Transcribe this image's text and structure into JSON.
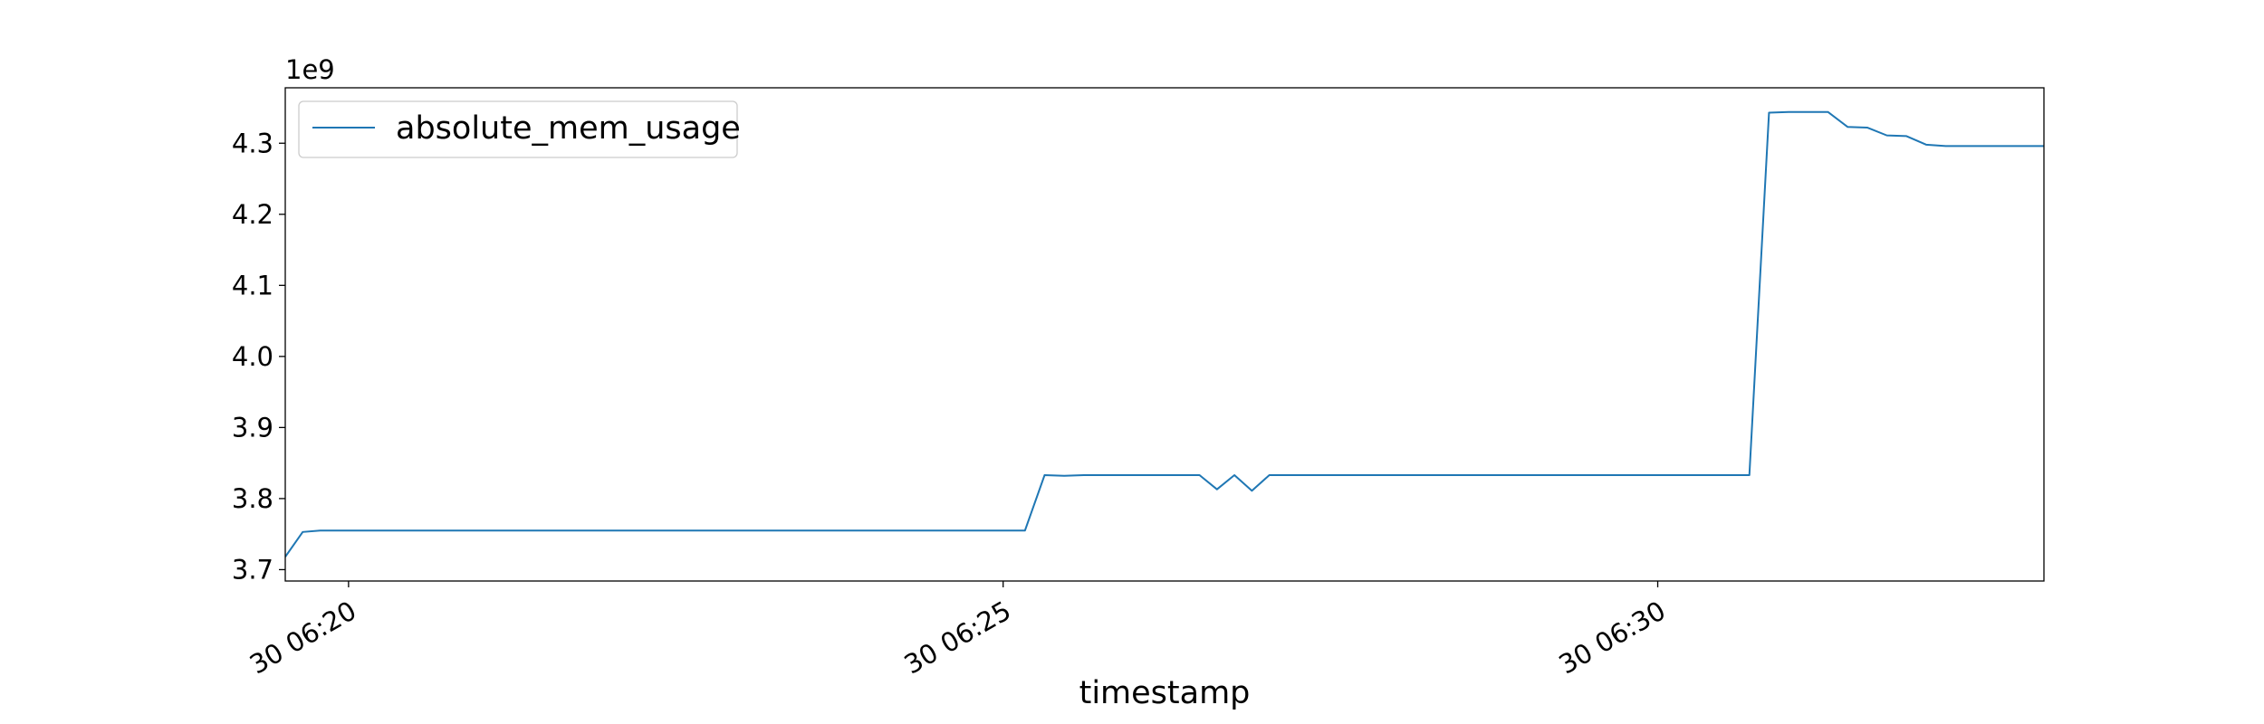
{
  "chart_data": {
    "type": "line",
    "title": "",
    "xlabel": "timestamp",
    "ylabel": "",
    "y_offset_label": "1e9",
    "y_scale_factor": 1000000000,
    "xlim": [
      "06:19:31",
      "06:32:57"
    ],
    "ylim": [
      3.684,
      4.378
    ],
    "x_ticks": [
      {
        "value": "06:20:00",
        "label": "30 06:20"
      },
      {
        "value": "06:25:00",
        "label": "30 06:25"
      },
      {
        "value": "06:30:00",
        "label": "30 06:30"
      }
    ],
    "y_ticks": [
      3.7,
      3.8,
      3.9,
      4.0,
      4.1,
      4.2,
      4.3
    ],
    "y_tick_labels": [
      "3.7",
      "3.8",
      "3.9",
      "4.0",
      "4.1",
      "4.2",
      "4.3"
    ],
    "grid": false,
    "legend_position": "top-left",
    "series": [
      {
        "name": "absolute_mem_usage",
        "color": "#1f77b4",
        "x": [
          "06:19:31",
          "06:19:39",
          "06:19:47",
          "06:20:00",
          "06:22:00",
          "06:24:00",
          "06:25:10",
          "06:25:19",
          "06:25:28",
          "06:25:37",
          "06:26:00",
          "06:26:30",
          "06:26:38",
          "06:26:46",
          "06:26:54",
          "06:27:02",
          "06:27:10",
          "06:28:30",
          "06:29:45",
          "06:30:30",
          "06:30:42",
          "06:30:51",
          "06:31:00",
          "06:31:09",
          "06:31:18",
          "06:31:27",
          "06:31:36",
          "06:31:45",
          "06:31:54",
          "06:32:03",
          "06:32:12",
          "06:32:21",
          "06:32:30",
          "06:32:39",
          "06:32:48",
          "06:32:57"
        ],
        "values": [
          3.718,
          3.753,
          3.755,
          3.755,
          3.755,
          3.755,
          3.755,
          3.833,
          3.832,
          3.833,
          3.833,
          3.833,
          3.813,
          3.833,
          3.811,
          3.833,
          3.833,
          3.833,
          3.833,
          3.833,
          3.833,
          4.343,
          4.344,
          4.344,
          4.344,
          4.323,
          4.322,
          4.311,
          4.31,
          4.298,
          4.296,
          4.296,
          4.296,
          4.296,
          4.296,
          4.296
        ]
      }
    ]
  }
}
